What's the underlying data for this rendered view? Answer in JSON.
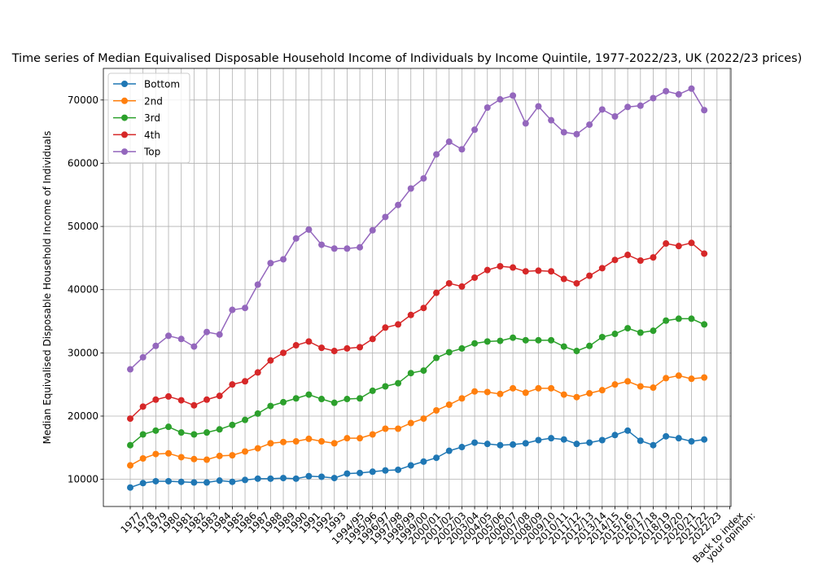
{
  "chart_data": {
    "type": "line",
    "title": "Time series of Median Equivalised Disposable Household Income of Individuals by Income Quintile, 1977-2022/23, UK (2022/23 prices)",
    "y_label": "Median Equivalised Disposable Household Income of Individuals",
    "categories": [
      "1977",
      "1978",
      "1979",
      "1980",
      "1981",
      "1982",
      "1983",
      "1984",
      "1985",
      "1986",
      "1987",
      "1988",
      "1989",
      "1990",
      "1991",
      "1992",
      "1993",
      "1994/95",
      "1995/96",
      "1996/97",
      "1997/98",
      "1998/99",
      "1999/00",
      "2000/01",
      "2001/02",
      "2002/03",
      "2003/04",
      "2004/05",
      "2005/06",
      "2006/07",
      "2007/08",
      "2008/09",
      "2009/10",
      "2010/11",
      "2011/12",
      "2012/13",
      "2013/14",
      "2014/15",
      "2015/16",
      "2016/17",
      "2017/18",
      "2018/19",
      "2019/20",
      "2020/21",
      "2021/22",
      "2022/23",
      "Back to index",
      "your opinion:"
    ],
    "series": [
      {
        "name": "Bottom",
        "color": "#1f77b4",
        "values": [
          8700,
          9400,
          9700,
          9700,
          9600,
          9500,
          9500,
          9800,
          9600,
          9900,
          10100,
          10100,
          10200,
          10100,
          10500,
          10400,
          10200,
          10900,
          11000,
          11200,
          11400,
          11500,
          12200,
          12800,
          13400,
          14500,
          15100,
          15800,
          15600,
          15400,
          15500,
          15700,
          16200,
          16500,
          16300,
          15600,
          15800,
          16200,
          17000,
          17700,
          16100,
          15400,
          16800,
          16500,
          16000,
          16300,
          null,
          null
        ]
      },
      {
        "name": "2nd",
        "color": "#ff7f0e",
        "values": [
          12200,
          13300,
          14000,
          14100,
          13500,
          13200,
          13100,
          13700,
          13800,
          14400,
          14900,
          15700,
          15900,
          16000,
          16400,
          16000,
          15700,
          16500,
          16500,
          17100,
          18000,
          18000,
          18900,
          19600,
          20900,
          21800,
          22800,
          23900,
          23800,
          23500,
          24400,
          23700,
          24400,
          24400,
          23400,
          23000,
          23600,
          24100,
          25000,
          25500,
          24700,
          24500,
          26000,
          26400,
          25900,
          26100,
          null,
          null
        ]
      },
      {
        "name": "3rd",
        "color": "#2ca02c",
        "values": [
          15400,
          17100,
          17700,
          18300,
          17400,
          17100,
          17400,
          17900,
          18600,
          19400,
          20400,
          21600,
          22200,
          22800,
          23400,
          22700,
          22100,
          22700,
          22800,
          24000,
          24700,
          25200,
          26800,
          27200,
          29200,
          30100,
          30700,
          31500,
          31800,
          31900,
          32400,
          32000,
          32000,
          32000,
          31000,
          30300,
          31100,
          32500,
          33000,
          33900,
          33200,
          33500,
          35100,
          35400,
          35400,
          34500,
          null,
          null
        ]
      },
      {
        "name": "4th",
        "color": "#d62728",
        "values": [
          19600,
          21500,
          22600,
          23100,
          22500,
          21700,
          22600,
          23200,
          25000,
          25500,
          26900,
          28800,
          30000,
          31200,
          31800,
          30800,
          30300,
          30700,
          30900,
          32200,
          34000,
          34500,
          36000,
          37100,
          39500,
          41000,
          40500,
          41900,
          43100,
          43700,
          43500,
          42900,
          43000,
          42900,
          41700,
          41000,
          42200,
          43400,
          44700,
          45500,
          44600,
          45100,
          47300,
          46900,
          47400,
          45700,
          null,
          null
        ]
      },
      {
        "name": "Top",
        "color": "#9467bd",
        "values": [
          27400,
          29300,
          31100,
          32700,
          32200,
          31000,
          33300,
          32900,
          36800,
          37100,
          40800,
          44200,
          44800,
          48100,
          49500,
          47100,
          46500,
          46500,
          46700,
          49400,
          51500,
          53400,
          56000,
          57600,
          61400,
          63400,
          62200,
          65300,
          68800,
          70100,
          70700,
          66300,
          69000,
          66800,
          64900,
          64600,
          66100,
          68500,
          67400,
          68900,
          69100,
          70300,
          71400,
          70900,
          71800,
          68400,
          null,
          null
        ]
      }
    ],
    "ylim": [
      5700,
      75000
    ],
    "yticks": [
      10000,
      20000,
      30000,
      40000,
      50000,
      60000,
      70000
    ],
    "grid": true,
    "legend": "upper left"
  }
}
